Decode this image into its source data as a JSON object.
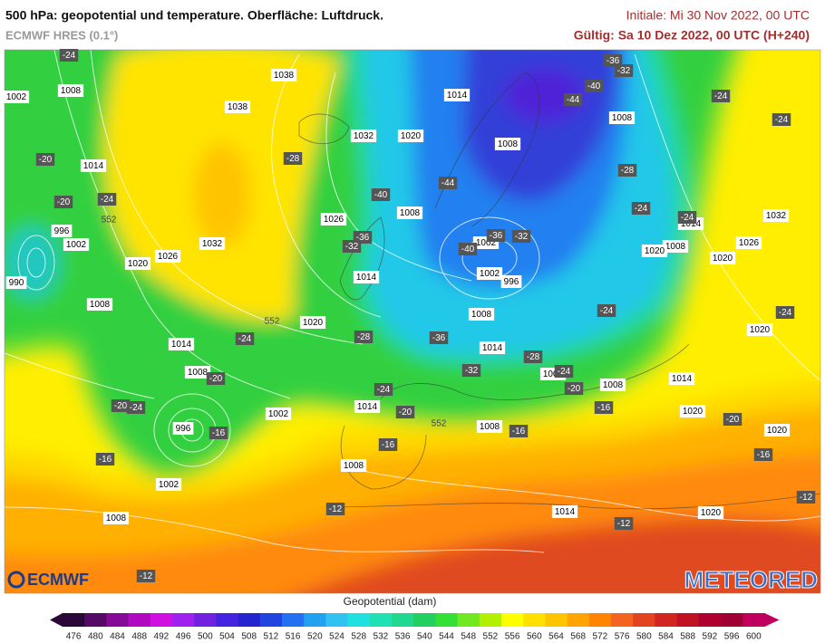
{
  "header": {
    "title": "500 hPa: geopotential und temperature. Oberfläche: Luftdruck.",
    "model": "ECMWF HRES (0.1°)",
    "initial": "Initiale: Mi 30 Nov 2022, 00 UTC",
    "valid": "Gültig: Sa 10 Dez 2022, 00 UTC (H+240)"
  },
  "map": {
    "pressure_labels": [
      1038,
      1038,
      1008,
      1002,
      1014,
      996,
      1002,
      990,
      1020,
      1026,
      1032,
      1008,
      1014,
      1008,
      996,
      1002,
      1002,
      1008,
      1008,
      1014,
      1020,
      1026,
      1032,
      1020,
      1014,
      1008,
      1008,
      1014,
      1002,
      1002,
      996,
      1008,
      1014,
      1008,
      1008,
      1008,
      1014,
      1020,
      1014,
      1008,
      1020,
      1020,
      1026,
      1032,
      1008,
      1020,
      1020,
      1014,
      1020
    ],
    "temperature_labels": [
      -24,
      -20,
      -20,
      -24,
      -28,
      -40,
      -44,
      -36,
      -32,
      -40,
      -36,
      -32,
      -32,
      -36,
      -40,
      -44,
      -28,
      -24,
      -24,
      -24,
      -24,
      -24,
      -24,
      -24,
      -28,
      -36,
      -28,
      -32,
      -24,
      -20,
      -16,
      -20,
      -16,
      -12,
      -24,
      -20,
      -16,
      -16,
      -20,
      -20,
      -24,
      -16,
      -16,
      -12,
      -12,
      -12
    ],
    "contour_labels": [
      552,
      552,
      552
    ]
  },
  "logos": {
    "left": "ECMWF",
    "right": "METEORED"
  },
  "colorbar": {
    "label": "Geopotential (dam)",
    "ticks": [
      476,
      480,
      484,
      488,
      492,
      496,
      500,
      504,
      508,
      512,
      516,
      520,
      524,
      528,
      532,
      536,
      540,
      544,
      548,
      552,
      556,
      560,
      564,
      568,
      572,
      576,
      580,
      584,
      588,
      592,
      596,
      600
    ],
    "colors": [
      "#2a0838",
      "#560a66",
      "#860a98",
      "#b00ac0",
      "#d010e0",
      "#a020f0",
      "#7022e0",
      "#4424e0",
      "#2424d0",
      "#2044e0",
      "#2072f0",
      "#20a2f0",
      "#30c2f0",
      "#20e0e0",
      "#20e0b4",
      "#20d890",
      "#22d062",
      "#34e034",
      "#72e822",
      "#b2f000",
      "#ffff00",
      "#ffe000",
      "#ffc400",
      "#ffa400",
      "#ff8400",
      "#f26420",
      "#e24420",
      "#d22420",
      "#c01222",
      "#b00030",
      "#a00034",
      "#c0005c"
    ]
  }
}
